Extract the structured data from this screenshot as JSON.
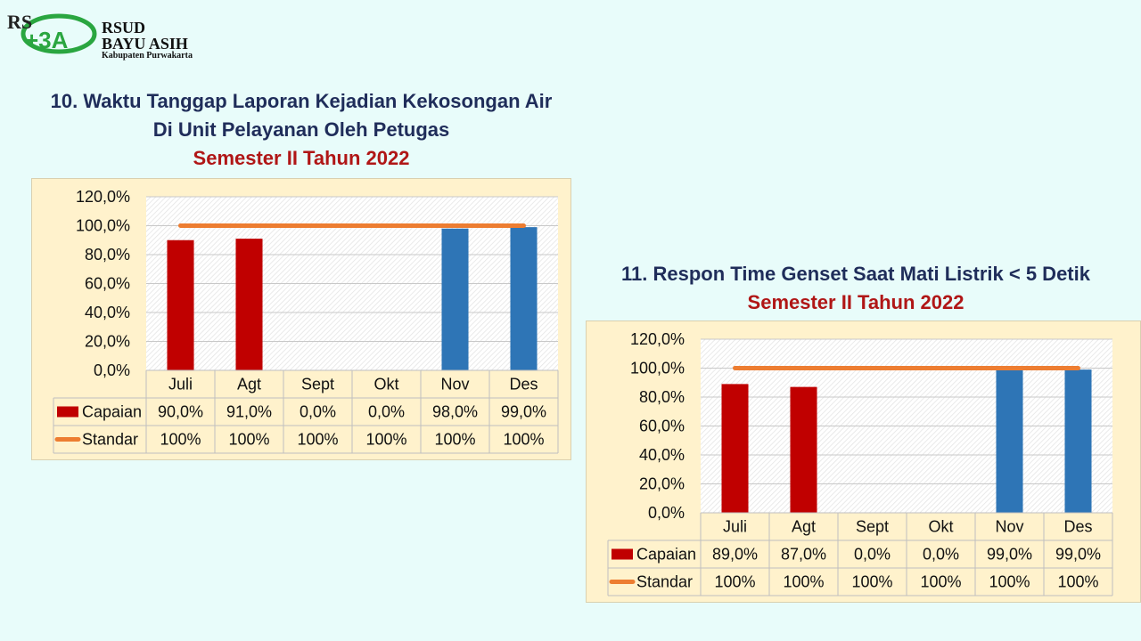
{
  "header": {
    "logo_line1": "RSUD",
    "logo_line2": "BAYU ASIH",
    "logo_line3": "Kabupaten Purwakarta"
  },
  "charts": [
    {
      "title_line1": "10. Waktu Tanggap Laporan Kejadian Kekosongan Air",
      "title_line2": "Di Unit Pelayanan Oleh Petugas",
      "subtitle": "Semester II Tahun 2022"
    },
    {
      "title_line1": "11. Respon Time Genset Saat Mati Listrik < 5 Detik",
      "title_line2": "",
      "subtitle": "Semester II Tahun 2022"
    }
  ],
  "chart_data": [
    {
      "type": "bar",
      "title": "10. Waktu Tanggap Laporan Kejadian Kekosongan Air Di Unit Pelayanan Oleh Petugas",
      "subtitle": "Semester II Tahun 2022",
      "categories": [
        "Juli",
        "Agt",
        "Sept",
        "Okt",
        "Nov",
        "Des"
      ],
      "ylim": [
        0,
        120
      ],
      "yticks": [
        "0,0%",
        "20,0%",
        "40,0%",
        "60,0%",
        "80,0%",
        "100,0%",
        "120,0%"
      ],
      "grid": true,
      "series": [
        {
          "name": "Capaian",
          "kind": "bar",
          "values": [
            90,
            91,
            0,
            0,
            98,
            99
          ],
          "labels": [
            "90,0%",
            "91,0%",
            "0,0%",
            "0,0%",
            "98,0%",
            "99,0%"
          ],
          "colors": [
            "#c00000",
            "#c00000",
            "#c00000",
            "#c00000",
            "#2e75b6",
            "#2e75b6"
          ]
        },
        {
          "name": "Standar",
          "kind": "line",
          "values": [
            100,
            100,
            100,
            100,
            100,
            100
          ],
          "labels": [
            "100%",
            "100%",
            "100%",
            "100%",
            "100%",
            "100%"
          ],
          "color": "#ed7d31"
        }
      ]
    },
    {
      "type": "bar",
      "title": "11. Respon Time Genset Saat Mati Listrik < 5 Detik",
      "subtitle": "Semester II Tahun 2022",
      "categories": [
        "Juli",
        "Agt",
        "Sept",
        "Okt",
        "Nov",
        "Des"
      ],
      "ylim": [
        0,
        120
      ],
      "yticks": [
        "0,0%",
        "20,0%",
        "40,0%",
        "60,0%",
        "80,0%",
        "100,0%",
        "120,0%"
      ],
      "grid": true,
      "series": [
        {
          "name": "Capaian",
          "kind": "bar",
          "values": [
            89,
            87,
            0,
            0,
            99,
            99
          ],
          "labels": [
            "89,0%",
            "87,0%",
            "0,0%",
            "0,0%",
            "99,0%",
            "99,0%"
          ],
          "colors": [
            "#c00000",
            "#c00000",
            "#c00000",
            "#c00000",
            "#2e75b6",
            "#2e75b6"
          ]
        },
        {
          "name": "Standar",
          "kind": "line",
          "values": [
            100,
            100,
            100,
            100,
            100,
            100
          ],
          "labels": [
            "100%",
            "100%",
            "100%",
            "100%",
            "100%",
            "100%"
          ],
          "color": "#ed7d31"
        }
      ]
    }
  ]
}
